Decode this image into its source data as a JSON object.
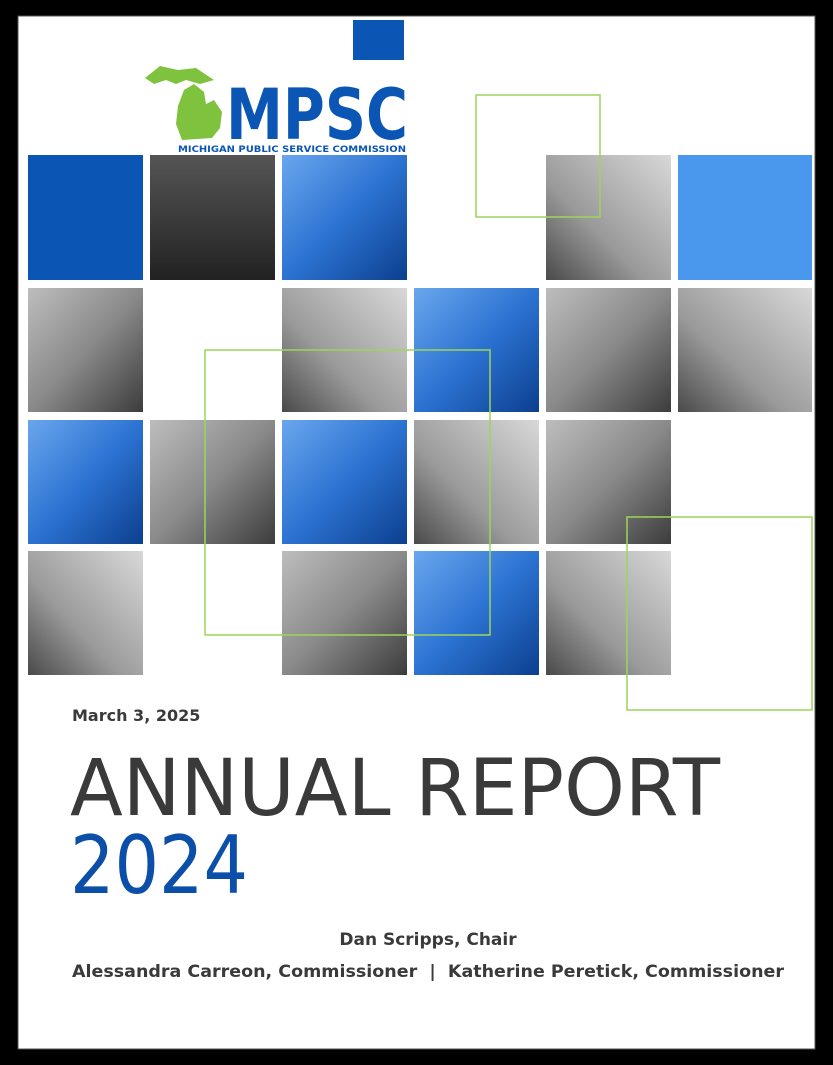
{
  "logo": {
    "acronym": "MPSC",
    "name": "MICHIGAN PUBLIC SERVICE COMMISSION"
  },
  "date": "March 3, 2025",
  "title": "ANNUAL REPORT",
  "year": "2024",
  "chair": "Dan Scripps, Chair",
  "commissioners": "Alessandra Carreon, Commissioner  |  Katherine Peretick, Commissioner"
}
